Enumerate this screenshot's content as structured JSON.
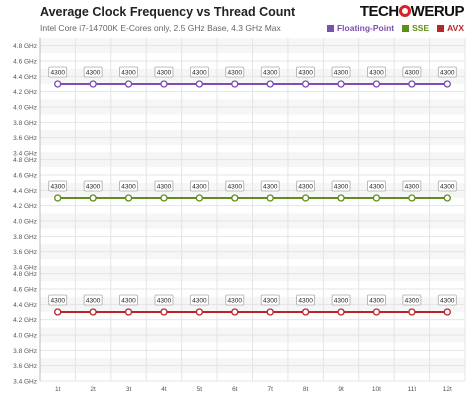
{
  "header": {
    "title": "Average Clock Frequency vs Thread Count",
    "subtitle": "Intel Core i7-14700K E-Cores only, 2.5 GHz Base, 4.3 GHz Max",
    "logo_text_left": "TECH",
    "logo_text_right": "WERUP"
  },
  "legend": [
    {
      "name": "Floating-Point",
      "color": "#7b4fb3"
    },
    {
      "name": "SSE",
      "color": "#5e8f1c"
    },
    {
      "name": "AVX",
      "color": "#b8262c"
    }
  ],
  "chart_data": [
    {
      "type": "line",
      "series": [
        {
          "name": "Floating-Point",
          "color": "#7b4fb3",
          "values": [
            4300,
            4300,
            4300,
            4300,
            4300,
            4300,
            4300,
            4300,
            4300,
            4300,
            4300,
            4300
          ]
        }
      ],
      "categories": [
        "1t",
        "2t",
        "3t",
        "4t",
        "5t",
        "6t",
        "7t",
        "8t",
        "9t",
        "10t",
        "11t",
        "12t"
      ],
      "yticks": [
        "4.8 GHz",
        "4.6 GHz",
        "4.4 GHz",
        "4.2 GHz",
        "4.0 GHz",
        "3.8 GHz",
        "3.6 GHz",
        "3.4 GHz"
      ],
      "ylim": [
        3400,
        4900
      ],
      "grid": true
    },
    {
      "type": "line",
      "series": [
        {
          "name": "SSE",
          "color": "#5e8f1c",
          "values": [
            4300,
            4300,
            4300,
            4300,
            4300,
            4300,
            4300,
            4300,
            4300,
            4300,
            4300,
            4300
          ]
        }
      ],
      "categories": [
        "1t",
        "2t",
        "3t",
        "4t",
        "5t",
        "6t",
        "7t",
        "8t",
        "9t",
        "10t",
        "11t",
        "12t"
      ],
      "yticks": [
        "4.8 GHz",
        "4.6 GHz",
        "4.4 GHz",
        "4.2 GHz",
        "4.0 GHz",
        "3.8 GHz",
        "3.6 GHz",
        "3.4 GHz"
      ],
      "ylim": [
        3400,
        4900
      ],
      "grid": true
    },
    {
      "type": "line",
      "series": [
        {
          "name": "AVX",
          "color": "#b8262c",
          "values": [
            4300,
            4300,
            4300,
            4300,
            4300,
            4300,
            4300,
            4300,
            4300,
            4300,
            4300,
            4300
          ]
        }
      ],
      "categories": [
        "1t",
        "2t",
        "3t",
        "4t",
        "5t",
        "6t",
        "7t",
        "8t",
        "9t",
        "10t",
        "11t",
        "12t"
      ],
      "yticks": [
        "4.8 GHz",
        "4.6 GHz",
        "4.4 GHz",
        "4.2 GHz",
        "4.0 GHz",
        "3.8 GHz",
        "3.6 GHz",
        "3.4 GHz"
      ],
      "ylim": [
        3400,
        4900
      ],
      "grid": true
    }
  ]
}
